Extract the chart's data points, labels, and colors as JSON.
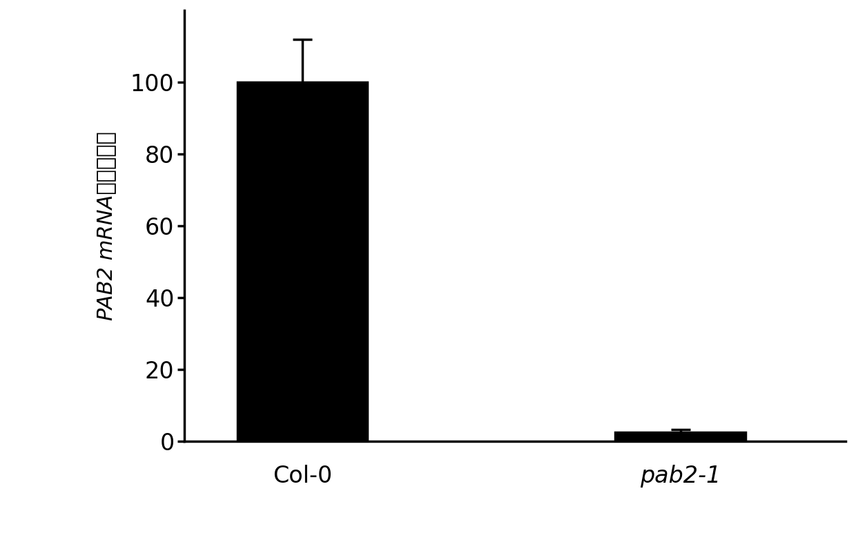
{
  "categories": [
    "Col-0",
    "pab2-1"
  ],
  "values": [
    100,
    2.5
  ],
  "errors_up": [
    12.0,
    0.7
  ],
  "errors_down": [
    5.0,
    0.5
  ],
  "bar_color": "#000000",
  "bar_width": 0.55,
  "ylim": [
    0,
    120
  ],
  "yticks": [
    0,
    20,
    40,
    60,
    80,
    100
  ],
  "background_color": "#ffffff",
  "tick_label_fontsize": 24,
  "ylabel_fontsize": 22,
  "xlabel_italic_flags": [
    false,
    true
  ],
  "bar_positions": [
    1,
    2.6
  ],
  "error_capsize": 10,
  "linewidth": 2.5,
  "spine_linewidth": 2.5,
  "ylabel_text": "PAB2 mRNA相对表达量"
}
